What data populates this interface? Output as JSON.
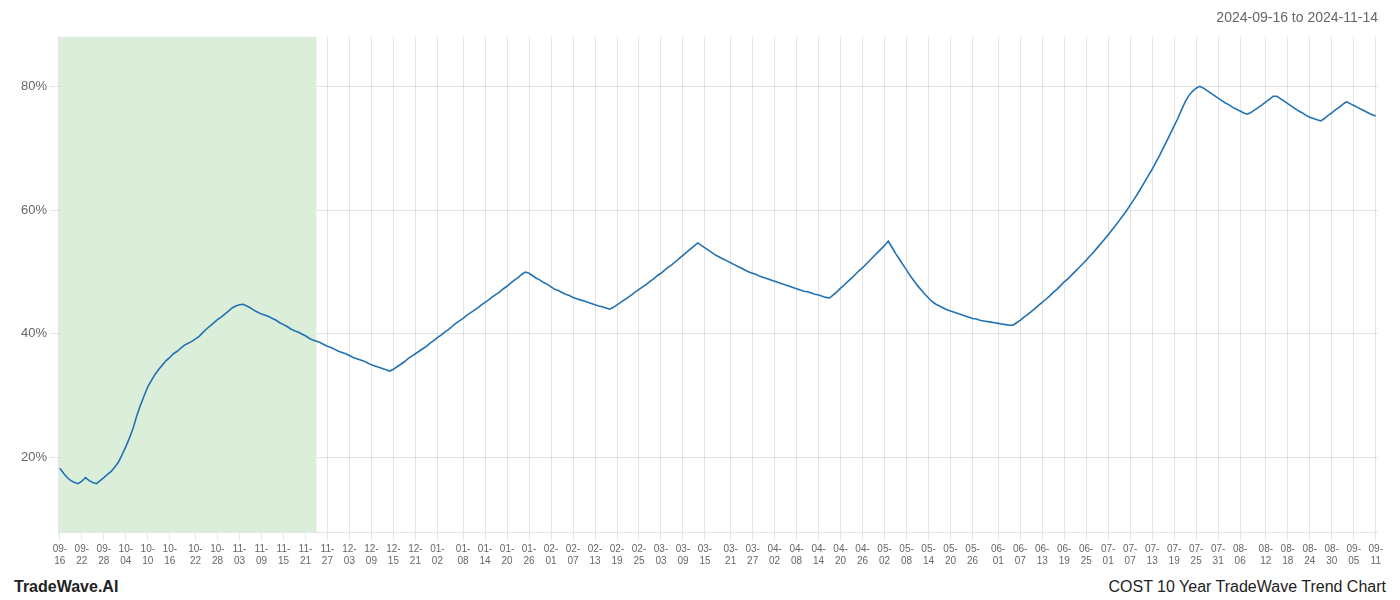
{
  "chart_data": {
    "type": "line",
    "title": "2024-09-16 to 2024-11-14",
    "annotations": [
      "TradeWave.AI",
      "COST 10 Year TradeWave Trend Chart"
    ],
    "color": "#2271b3",
    "grid": true,
    "ylim": [
      0.08,
      0.88
    ],
    "yticks": [
      {
        "value": 0.2,
        "label": "20%"
      },
      {
        "value": 0.4,
        "label": "40%"
      },
      {
        "value": 0.6,
        "label": "60%"
      },
      {
        "value": 0.8,
        "label": "80%"
      }
    ],
    "shaded_region": {
      "x_start": 0,
      "x_end": 11.5,
      "color": "#daeeda"
    },
    "categories": [
      "09-16",
      null,
      null,
      null,
      null,
      null,
      "09-22",
      null,
      null,
      null,
      null,
      null,
      "09-28",
      null,
      null,
      null,
      null,
      null,
      "10-04",
      null,
      null,
      null,
      null,
      null,
      "10-10",
      null,
      null,
      null,
      null,
      null,
      "10-16",
      null,
      null,
      null,
      null,
      null,
      null,
      "10-22",
      null,
      null,
      null,
      null,
      null,
      "10-28",
      null,
      null,
      null,
      null,
      null,
      "11-03",
      null,
      null,
      null,
      null,
      null,
      "11-09",
      null,
      null,
      null,
      null,
      null,
      "11-15",
      null,
      null,
      null,
      null,
      null,
      "11-21",
      null,
      null,
      null,
      null,
      null,
      "11-27",
      null,
      null,
      null,
      null,
      null,
      "12-03",
      null,
      null,
      null,
      null,
      null,
      "12-09",
      null,
      null,
      null,
      null,
      null,
      "12-15",
      null,
      null,
      null,
      null,
      null,
      "12-21",
      null,
      null,
      null,
      null,
      null,
      "01-02",
      null,
      null,
      null,
      null,
      null,
      null,
      "01-08",
      null,
      null,
      null,
      null,
      null,
      "01-14",
      null,
      null,
      null,
      null,
      null,
      "01-20",
      null,
      null,
      null,
      null,
      null,
      "01-26",
      null,
      null,
      null,
      null,
      null,
      "02-01",
      null,
      null,
      null,
      null,
      null,
      "02-07",
      null,
      null,
      null,
      null,
      null,
      "02-13",
      null,
      null,
      null,
      null,
      null,
      "02-19",
      null,
      null,
      null,
      null,
      null,
      "02-25",
      null,
      null,
      null,
      null,
      null,
      "03-03",
      null,
      null,
      null,
      null,
      null,
      "03-09",
      null,
      null,
      null,
      null,
      null,
      "03-15",
      null,
      null,
      null,
      null,
      null,
      null,
      "03-21",
      null,
      null,
      null,
      null,
      null,
      "03-27",
      null,
      null,
      null,
      null,
      null,
      "04-02",
      null,
      null,
      null,
      null,
      null,
      "04-08",
      null,
      null,
      null,
      null,
      null,
      "04-14",
      null,
      null,
      null,
      null,
      null,
      "04-20",
      null,
      null,
      null,
      null,
      null,
      "04-26",
      null,
      null,
      null,
      null,
      null,
      "05-02",
      null,
      null,
      null,
      null,
      null,
      "05-08",
      null,
      null,
      null,
      null,
      null,
      "05-14",
      null,
      null,
      null,
      null,
      null,
      "05-20",
      null,
      null,
      null,
      null,
      null,
      "05-26",
      null,
      null,
      null,
      null,
      null,
      null,
      "06-01",
      null,
      null,
      null,
      null,
      null,
      "06-07",
      null,
      null,
      null,
      null,
      null,
      "06-13",
      null,
      null,
      null,
      null,
      null,
      "06-19",
      null,
      null,
      null,
      null,
      null,
      "06-25",
      null,
      null,
      null,
      null,
      null,
      "07-01",
      null,
      null,
      null,
      null,
      null,
      "07-07",
      null,
      null,
      null,
      null,
      null,
      "07-13",
      null,
      null,
      null,
      null,
      null,
      "07-19",
      null,
      null,
      null,
      null,
      null,
      "07-25",
      null,
      null,
      null,
      null,
      null,
      "07-31",
      null,
      null,
      null,
      null,
      null,
      "08-06",
      null,
      null,
      null,
      null,
      null,
      null,
      "08-12",
      null,
      null,
      null,
      null,
      null,
      "08-18",
      null,
      null,
      null,
      null,
      null,
      "08-24",
      null,
      null,
      null,
      null,
      null,
      "08-30",
      null,
      null,
      null,
      null,
      null,
      "09-05",
      null,
      null,
      null,
      null,
      null,
      "09-11"
    ],
    "values": [
      0.183,
      0.175,
      0.168,
      0.163,
      0.16,
      0.158,
      0.162,
      0.168,
      0.163,
      0.16,
      0.158,
      0.163,
      0.168,
      0.173,
      0.178,
      0.185,
      0.193,
      0.205,
      0.218,
      0.232,
      0.248,
      0.268,
      0.285,
      0.3,
      0.315,
      0.325,
      0.335,
      0.343,
      0.35,
      0.357,
      0.362,
      0.368,
      0.372,
      0.377,
      0.382,
      0.385,
      0.388,
      0.392,
      0.396,
      0.402,
      0.408,
      0.413,
      0.418,
      0.423,
      0.427,
      0.432,
      0.437,
      0.442,
      0.445,
      0.447,
      0.448,
      0.445,
      0.442,
      0.438,
      0.435,
      0.432,
      0.43,
      0.428,
      0.425,
      0.422,
      0.418,
      0.415,
      0.412,
      0.408,
      0.405,
      0.403,
      0.4,
      0.397,
      0.393,
      0.39,
      0.388,
      0.386,
      0.383,
      0.38,
      0.378,
      0.375,
      0.372,
      0.37,
      0.368,
      0.365,
      0.362,
      0.36,
      0.358,
      0.356,
      0.353,
      0.35,
      0.348,
      0.346,
      0.344,
      0.342,
      0.34,
      0.343,
      0.347,
      0.351,
      0.355,
      0.36,
      0.364,
      0.368,
      0.372,
      0.376,
      0.38,
      0.385,
      0.389,
      0.394,
      0.398,
      0.403,
      0.407,
      0.412,
      0.417,
      0.421,
      0.425,
      0.43,
      0.434,
      0.438,
      0.442,
      0.447,
      0.451,
      0.455,
      0.46,
      0.464,
      0.468,
      0.473,
      0.477,
      0.482,
      0.487,
      0.491,
      0.496,
      0.5,
      0.498,
      0.494,
      0.49,
      0.487,
      0.483,
      0.48,
      0.476,
      0.472,
      0.47,
      0.467,
      0.464,
      0.462,
      0.459,
      0.457,
      0.455,
      0.453,
      0.451,
      0.449,
      0.447,
      0.445,
      0.444,
      0.442,
      0.44,
      0.443,
      0.447,
      0.451,
      0.455,
      0.459,
      0.463,
      0.468,
      0.472,
      0.476,
      0.48,
      0.485,
      0.489,
      0.494,
      0.498,
      0.503,
      0.508,
      0.512,
      0.517,
      0.522,
      0.527,
      0.532,
      0.537,
      0.542,
      0.547,
      0.543,
      0.539,
      0.535,
      0.531,
      0.527,
      0.524,
      0.521,
      0.518,
      0.515,
      0.512,
      0.509,
      0.506,
      0.503,
      0.5,
      0.498,
      0.496,
      0.493,
      0.491,
      0.489,
      0.487,
      0.485,
      0.483,
      0.481,
      0.479,
      0.477,
      0.475,
      0.473,
      0.471,
      0.469,
      0.468,
      0.466,
      0.464,
      0.463,
      0.461,
      0.459,
      0.458,
      0.463,
      0.468,
      0.474,
      0.479,
      0.485,
      0.49,
      0.496,
      0.502,
      0.507,
      0.513,
      0.519,
      0.525,
      0.531,
      0.537,
      0.543,
      0.55,
      0.54,
      0.53,
      0.521,
      0.512,
      0.503,
      0.494,
      0.486,
      0.478,
      0.471,
      0.464,
      0.458,
      0.452,
      0.448,
      0.445,
      0.442,
      0.439,
      0.437,
      0.435,
      0.433,
      0.431,
      0.429,
      0.427,
      0.425,
      0.424,
      0.422,
      0.421,
      0.42,
      0.419,
      0.418,
      0.417,
      0.416,
      0.415,
      0.414,
      0.414,
      0.418,
      0.422,
      0.427,
      0.431,
      0.436,
      0.441,
      0.446,
      0.451,
      0.456,
      0.461,
      0.467,
      0.472,
      0.478,
      0.484,
      0.489,
      0.495,
      0.501,
      0.507,
      0.513,
      0.519,
      0.526,
      0.532,
      0.539,
      0.546,
      0.553,
      0.56,
      0.568,
      0.575,
      0.583,
      0.591,
      0.599,
      0.608,
      0.617,
      0.626,
      0.636,
      0.646,
      0.656,
      0.666,
      0.677,
      0.688,
      0.7,
      0.712,
      0.724,
      0.736,
      0.748,
      0.762,
      0.775,
      0.785,
      0.792,
      0.797,
      0.8,
      0.797,
      0.793,
      0.789,
      0.785,
      0.781,
      0.777,
      0.773,
      0.77,
      0.766,
      0.763,
      0.76,
      0.757,
      0.755,
      0.758,
      0.762,
      0.766,
      0.77,
      0.775,
      0.779,
      0.784,
      0.784,
      0.78,
      0.776,
      0.772,
      0.768,
      0.764,
      0.76,
      0.757,
      0.753,
      0.75,
      0.748,
      0.746,
      0.744,
      0.748,
      0.753,
      0.757,
      0.762,
      0.766,
      0.771,
      0.775,
      0.772,
      0.769,
      0.766,
      0.763,
      0.76,
      0.757,
      0.754,
      0.752
    ]
  }
}
